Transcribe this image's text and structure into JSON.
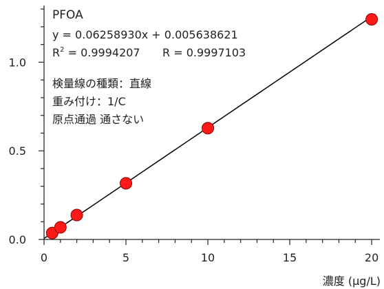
{
  "chart_data": {
    "type": "scatter",
    "title": "PFOA",
    "equation": "y = 0.06258930x + 0.005638621",
    "r2_label": "R",
    "r2_sup": "2",
    "r2_value": " = 0.9994207",
    "r_text": "R = 0.9997103",
    "info_lines": [
      "検量線の種類：直線",
      "重み付け：1/C",
      "原点通過 通さない"
    ],
    "xlabel": "濃度 (μg/L)",
    "ylabel": "",
    "xlim": [
      0,
      20.5
    ],
    "ylim": [
      0,
      1.32
    ],
    "x_ticks": [
      0,
      5,
      10,
      15,
      20
    ],
    "x_tick_labels": [
      "0",
      "5",
      "10",
      "15",
      "20"
    ],
    "y_ticks": [
      0.0,
      0.5,
      1.0
    ],
    "y_tick_labels": [
      "0.0",
      "0.5",
      "1.0"
    ],
    "x_minor_step": 1,
    "y_minor_step": 0.1,
    "fit": {
      "slope": 0.0625893,
      "intercept": 0.005638621
    },
    "points": [
      {
        "x": 0.5,
        "y": 0.0363
      },
      {
        "x": 1.0,
        "y": 0.0682
      },
      {
        "x": 2.0,
        "y": 0.138
      },
      {
        "x": 5.0,
        "y": 0.317
      },
      {
        "x": 10.0,
        "y": 0.628
      },
      {
        "x": 20.0,
        "y": 1.242
      }
    ],
    "colors": {
      "point": "#ff1a1a",
      "point_stroke": "#8a0000",
      "line": "#000000",
      "axis": "#222222"
    }
  }
}
